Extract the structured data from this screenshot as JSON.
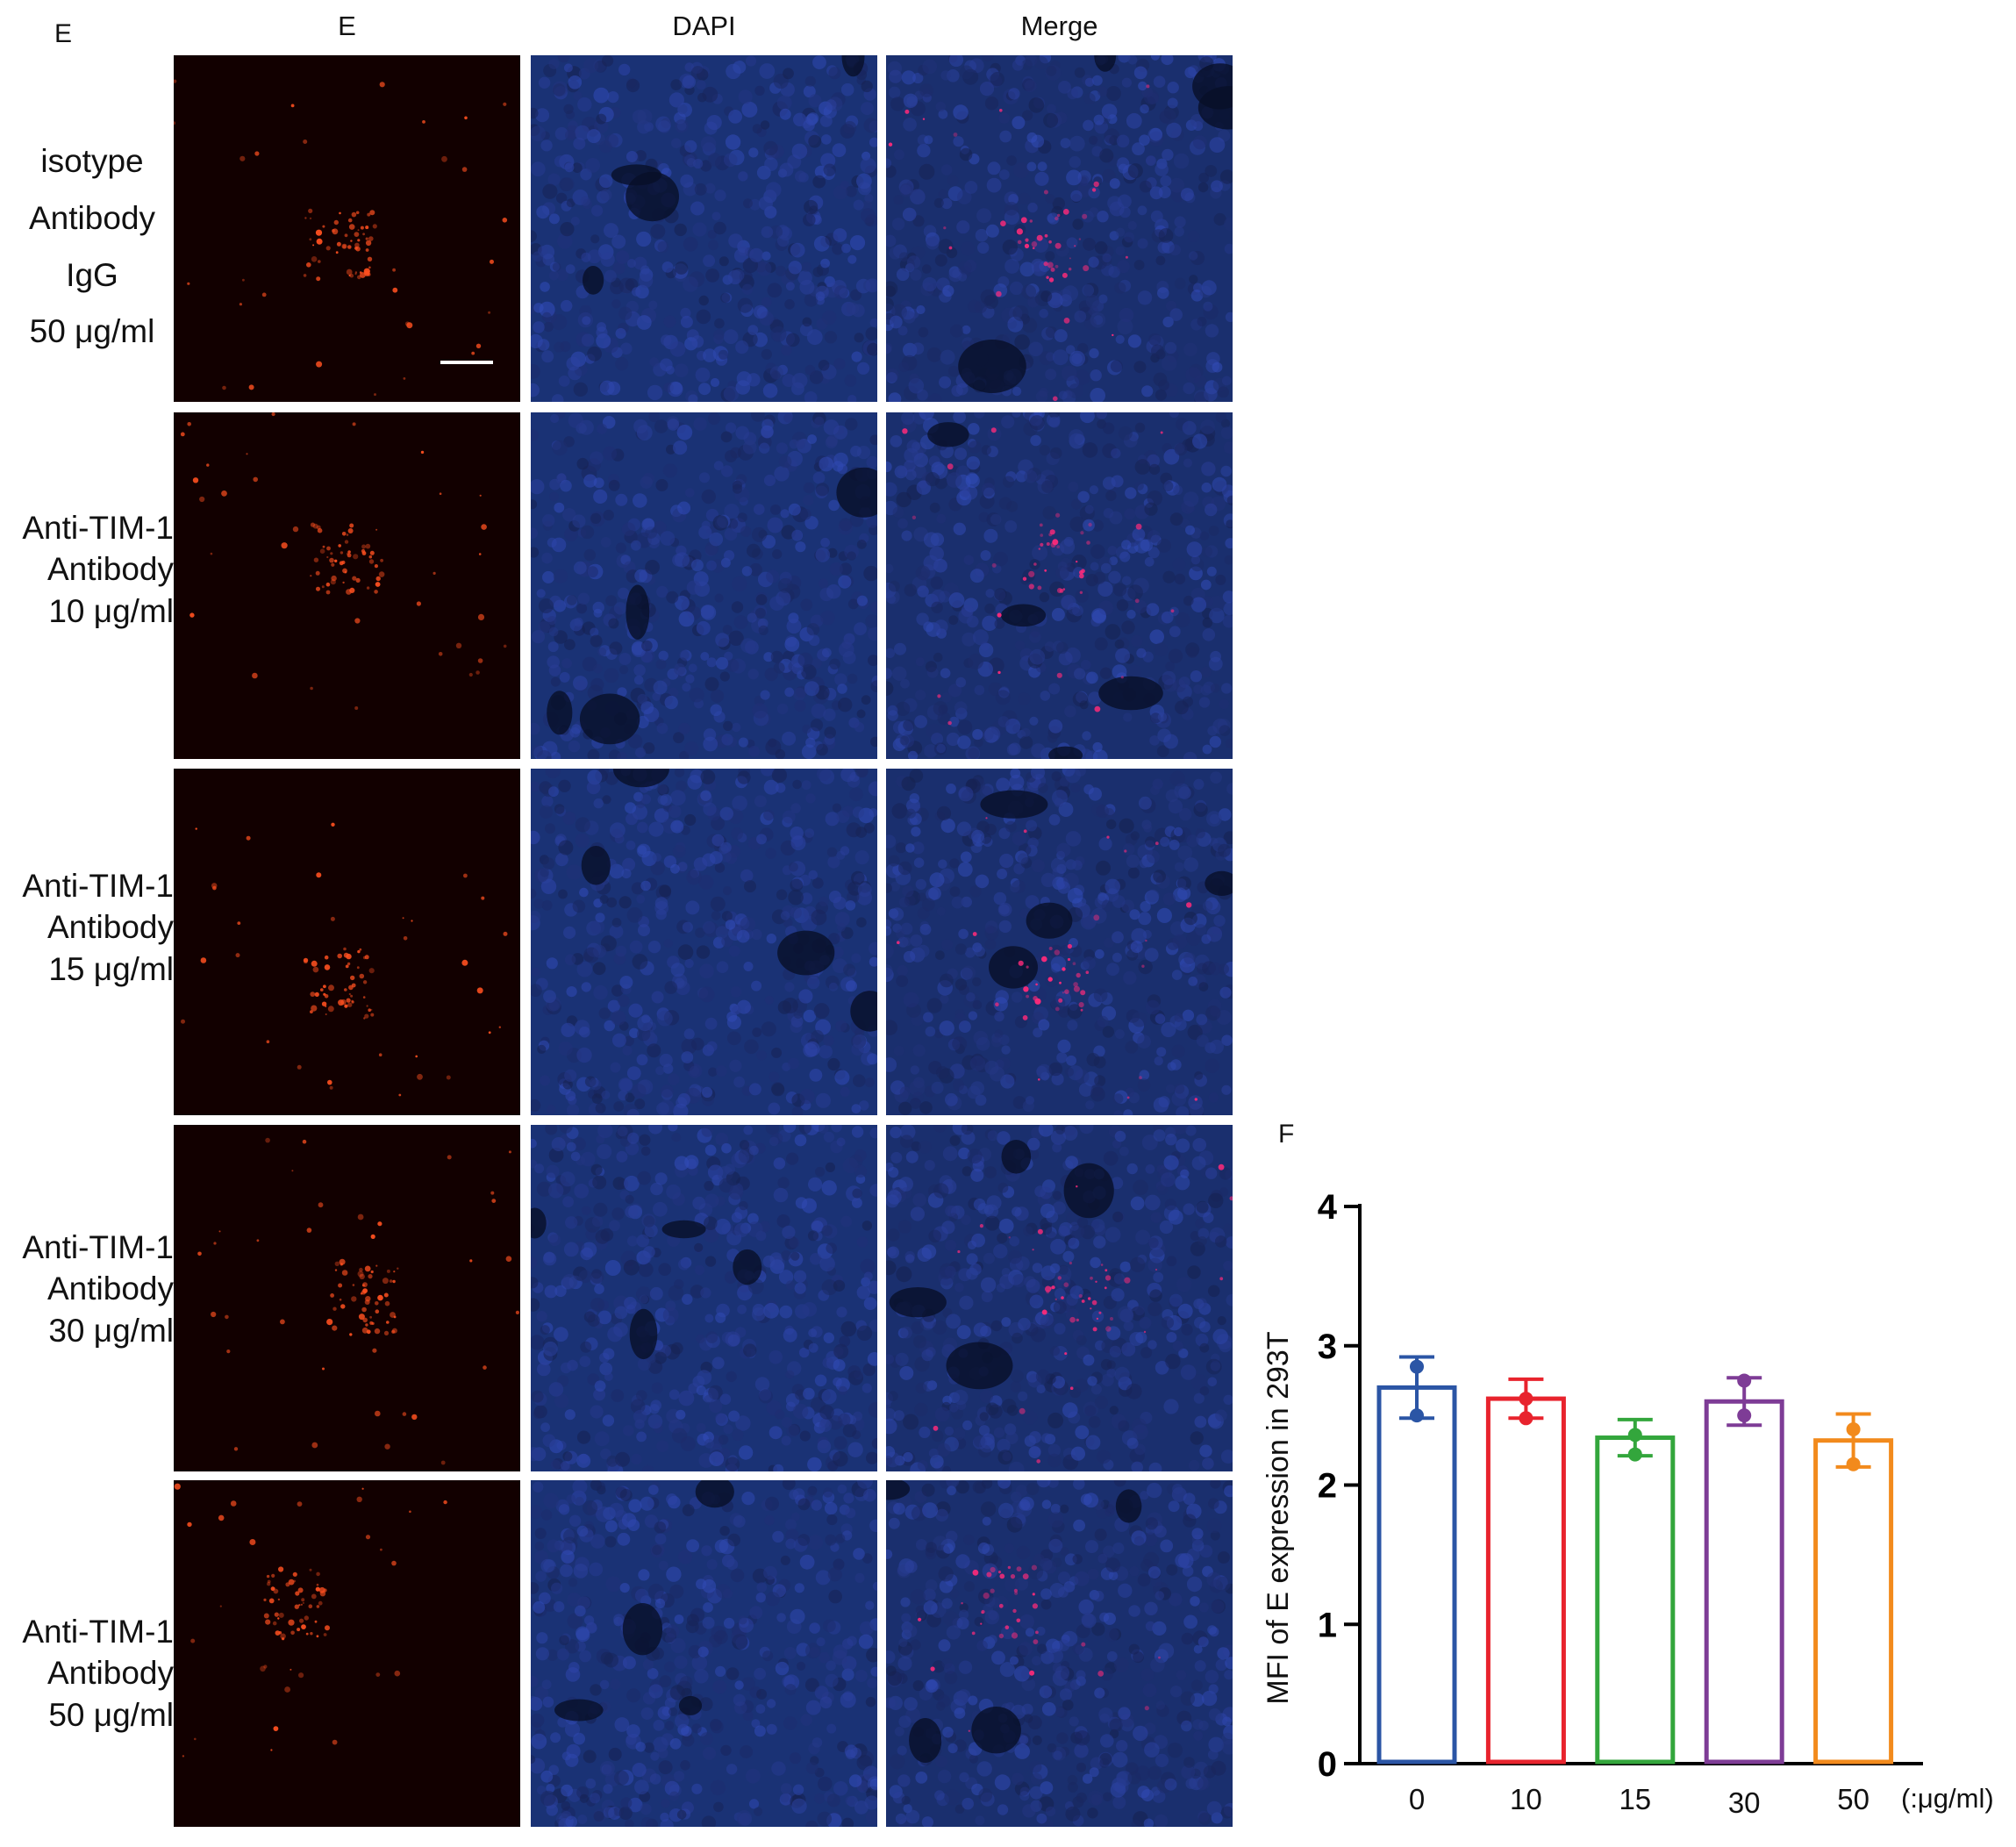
{
  "panels": {
    "e_label": "E",
    "f_label": "F"
  },
  "columns": [
    "E",
    "DAPI",
    "Merge"
  ],
  "rows": [
    {
      "lines": [
        "isotype",
        "Antibody",
        "IgG",
        "50 μg/ml"
      ]
    },
    {
      "lines": [
        "Anti-TIM-1",
        "Antibody",
        "10 μg/ml"
      ]
    },
    {
      "lines": [
        "Anti-TIM-1",
        "Antibody",
        "15 μg/ml"
      ]
    },
    {
      "lines": [
        "Anti-TIM-1",
        "Antibody",
        "30 μg/ml"
      ]
    },
    {
      "lines": [
        "Anti-TIM-1",
        "Antibody",
        "50 μg/ml"
      ]
    }
  ],
  "colors": {
    "e_background": "#120000",
    "dapi_background": "#1a3275",
    "merge_background": "#1a2f6e",
    "signal": "#ff5020"
  },
  "chart_data": {
    "type": "bar",
    "title": "",
    "xlabel": "",
    "x_unit_label": "(:μg/ml)",
    "ylabel": "MFI of E expression in 293T",
    "ylim": [
      0,
      4
    ],
    "yticks": [
      0,
      1,
      2,
      3,
      4
    ],
    "categories": [
      "0",
      "10",
      "15",
      "30",
      "50"
    ],
    "values": [
      2.7,
      2.62,
      2.34,
      2.6,
      2.32
    ],
    "error": [
      0.22,
      0.14,
      0.13,
      0.17,
      0.19
    ],
    "points": [
      [
        2.5,
        2.85
      ],
      [
        2.48,
        2.62
      ],
      [
        2.22,
        2.36
      ],
      [
        2.5,
        2.75
      ],
      [
        2.15,
        2.4
      ]
    ],
    "colors": [
      "#2b55a5",
      "#e8232d",
      "#33a63c",
      "#7e3c96",
      "#f28a1c"
    ],
    "grid": false,
    "legend": "none"
  }
}
